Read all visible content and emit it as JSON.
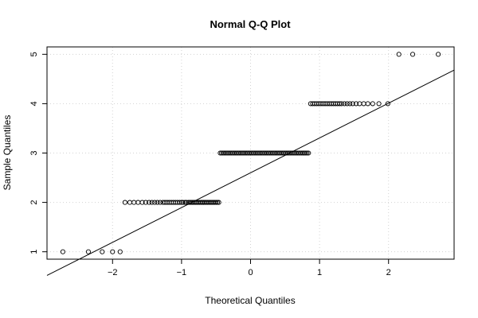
{
  "chart_data": {
    "type": "scatter",
    "title": "Normal Q-Q Plot",
    "xlabel": "Theoretical Quantiles",
    "ylabel": "Sample Quantiles",
    "xlim": [
      -2.95,
      2.95
    ],
    "ylim": [
      0.85,
      5.15
    ],
    "grid": true,
    "xticks": [
      -2,
      -1,
      0,
      1,
      2
    ],
    "xtick_labels": [
      "−2",
      "−1",
      "0",
      "1",
      "2"
    ],
    "yticks": [
      1,
      2,
      3,
      4,
      5
    ],
    "ytick_labels": [
      "1",
      "2",
      "3",
      "4",
      "5"
    ],
    "reference_line": {
      "x": [
        -2.95,
        2.95
      ],
      "y": [
        0.52,
        4.68
      ]
    },
    "point_groups": [
      {
        "y": 1,
        "x": [
          -2.72,
          -2.35,
          -2.15,
          -2.0,
          -1.89
        ]
      },
      {
        "y": 2,
        "x": [
          -1.82,
          -1.75,
          -1.69,
          -1.63,
          -1.57,
          -1.52,
          -1.47,
          -1.43,
          -1.39,
          -1.35,
          -1.31,
          -1.27,
          -1.24,
          -1.21,
          -1.18,
          -1.15,
          -1.12,
          -1.09,
          -1.06,
          -1.03,
          -1.0,
          -0.98,
          -0.95,
          -0.93,
          -0.9,
          -0.88,
          -0.86,
          -0.84,
          -0.82,
          -0.8,
          -0.78,
          -0.76,
          -0.74,
          -0.72,
          -0.7,
          -0.68,
          -0.66,
          -0.64,
          -0.62,
          -0.6,
          -0.58,
          -0.56,
          -0.54,
          -0.52,
          -0.5,
          -0.48,
          -0.46
        ]
      },
      {
        "y": 3,
        "x": [
          -0.44,
          -0.42,
          -0.4,
          -0.38,
          -0.36,
          -0.34,
          -0.32,
          -0.3,
          -0.28,
          -0.26,
          -0.24,
          -0.22,
          -0.2,
          -0.18,
          -0.16,
          -0.14,
          -0.12,
          -0.1,
          -0.08,
          -0.06,
          -0.04,
          -0.02,
          0.0,
          0.02,
          0.04,
          0.06,
          0.08,
          0.1,
          0.12,
          0.14,
          0.16,
          0.18,
          0.2,
          0.22,
          0.24,
          0.26,
          0.28,
          0.3,
          0.32,
          0.34,
          0.36,
          0.38,
          0.4,
          0.42,
          0.44,
          0.46,
          0.48,
          0.5,
          0.52,
          0.54,
          0.56,
          0.58,
          0.6,
          0.62,
          0.64,
          0.66,
          0.68,
          0.7,
          0.72,
          0.74,
          0.76,
          0.78,
          0.8,
          0.82,
          0.84
        ]
      },
      {
        "y": 4,
        "x": [
          0.87,
          0.9,
          0.93,
          0.96,
          0.99,
          1.02,
          1.05,
          1.08,
          1.11,
          1.14,
          1.17,
          1.2,
          1.23,
          1.26,
          1.29,
          1.32,
          1.36,
          1.4,
          1.44,
          1.48,
          1.53,
          1.58,
          1.64,
          1.7,
          1.77,
          1.86,
          1.99
        ]
      },
      {
        "y": 5,
        "x": [
          2.15,
          2.35,
          2.72
        ]
      }
    ]
  }
}
